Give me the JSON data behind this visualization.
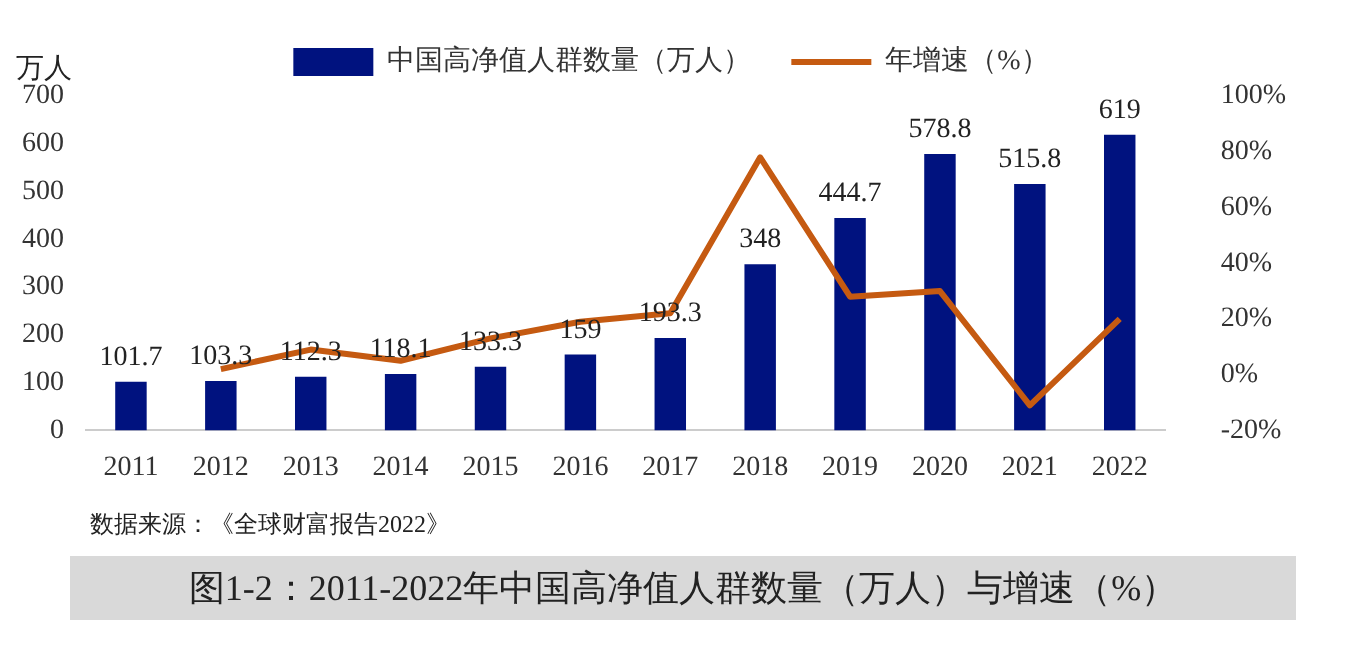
{
  "chart_data": {
    "type": "bar",
    "title": "图1-2：2011-2022年中国高净值人群数量（万人）与增速（%）",
    "ylabel": "万人",
    "annotations": [
      "数据来源：《全球财富报告2022》"
    ],
    "categories": [
      "2011",
      "2012",
      "2013",
      "2014",
      "2015",
      "2016",
      "2017",
      "2018",
      "2019",
      "2020",
      "2021",
      "2022"
    ],
    "series": [
      {
        "name": "中国高净值人群数量（万人）",
        "color": "#00127f",
        "values": [
          101.7,
          103.3,
          112.3,
          118.1,
          133.3,
          159,
          193.3,
          348,
          444.7,
          578.8,
          515.8,
          619
        ],
        "value_labels": [
          "101.7",
          "103.3",
          "112.3",
          "118.1",
          "133.3",
          "159",
          "193.3",
          "348",
          "444.7",
          "578.8",
          "515.8",
          "619"
        ]
      },
      {
        "name": "年增速（%）",
        "type": "line",
        "axis": "y2",
        "color": "#c55a11",
        "values": [
          null,
          2,
          9,
          5,
          13,
          19,
          22,
          78,
          28,
          30,
          -11,
          20
        ]
      }
    ],
    "ylim": [
      0,
      700
    ],
    "yticks": [
      0,
      100,
      200,
      300,
      400,
      500,
      600,
      700
    ],
    "y2lim": [
      -20,
      100
    ],
    "y2ticks": [
      {
        "value": -20,
        "label": "-20%"
      },
      {
        "value": 0,
        "label": "0%"
      },
      {
        "value": 20,
        "label": "20%"
      },
      {
        "value": 40,
        "label": "40%"
      },
      {
        "value": 60,
        "label": "60%"
      },
      {
        "value": 80,
        "label": "80%"
      },
      {
        "value": 100,
        "label": "100%"
      }
    ],
    "grid": false,
    "legend": "top",
    "marker": "none",
    "line_style": "solid"
  }
}
